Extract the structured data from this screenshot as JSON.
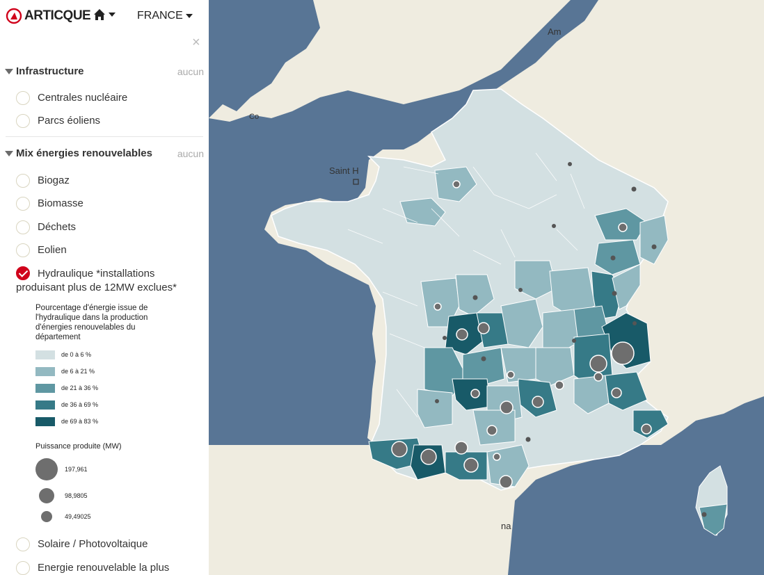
{
  "app": {
    "logo_text": "ARTICQUE",
    "home_icon": "home-icon",
    "country": "FRANCE",
    "close_symbol": "×"
  },
  "sections": [
    {
      "title": "Infrastructure",
      "link": "aucun",
      "items": [
        {
          "label": "Centrales nucléaire",
          "checked": false
        },
        {
          "label": "Parcs éoliens",
          "checked": false
        }
      ]
    },
    {
      "title": "Mix énergies renouvelables",
      "link": "aucun",
      "items": [
        {
          "label": "Biogaz",
          "checked": false
        },
        {
          "label": "Biomasse",
          "checked": false
        },
        {
          "label": "Déchets",
          "checked": false
        },
        {
          "label": "Eolien",
          "checked": false
        },
        {
          "label": "Hydraulique *installations produisant plus de 12MW exclues*",
          "checked": true
        },
        {
          "label": "Solaire / Photovoltaique",
          "checked": false
        },
        {
          "label": "Energie renouvelable la plus",
          "checked": false
        }
      ]
    }
  ],
  "legend": {
    "title": "Pourcentage d'énergie issue de l'hydraulique dans la production d'énergies renouvelables du département",
    "classes": [
      {
        "label": "de 0 à 6 %",
        "color": "#d3e0e2"
      },
      {
        "label": "de 6 à 21 %",
        "color": "#93b9c1"
      },
      {
        "label": "de 21 à 36 %",
        "color": "#5f97a2"
      },
      {
        "label": "de 36 à 69 %",
        "color": "#367a87"
      },
      {
        "label": "de 69 à 83 %",
        "color": "#185a68"
      }
    ],
    "bubble_title": "Puissance produite (MW)",
    "bubbles": [
      {
        "label": "197,961",
        "value": 197.961
      },
      {
        "label": "98,9805",
        "value": 98.9805
      },
      {
        "label": "49,49025",
        "value": 49.49025
      }
    ]
  },
  "map": {
    "colors": {
      "sea": "#587595",
      "land": "#efece0",
      "border": "#ffffff"
    },
    "labels": {
      "saint_helier": "Saint H",
      "amsterdam": "Am",
      "barcelona": "na",
      "cornwall": "Co"
    }
  }
}
